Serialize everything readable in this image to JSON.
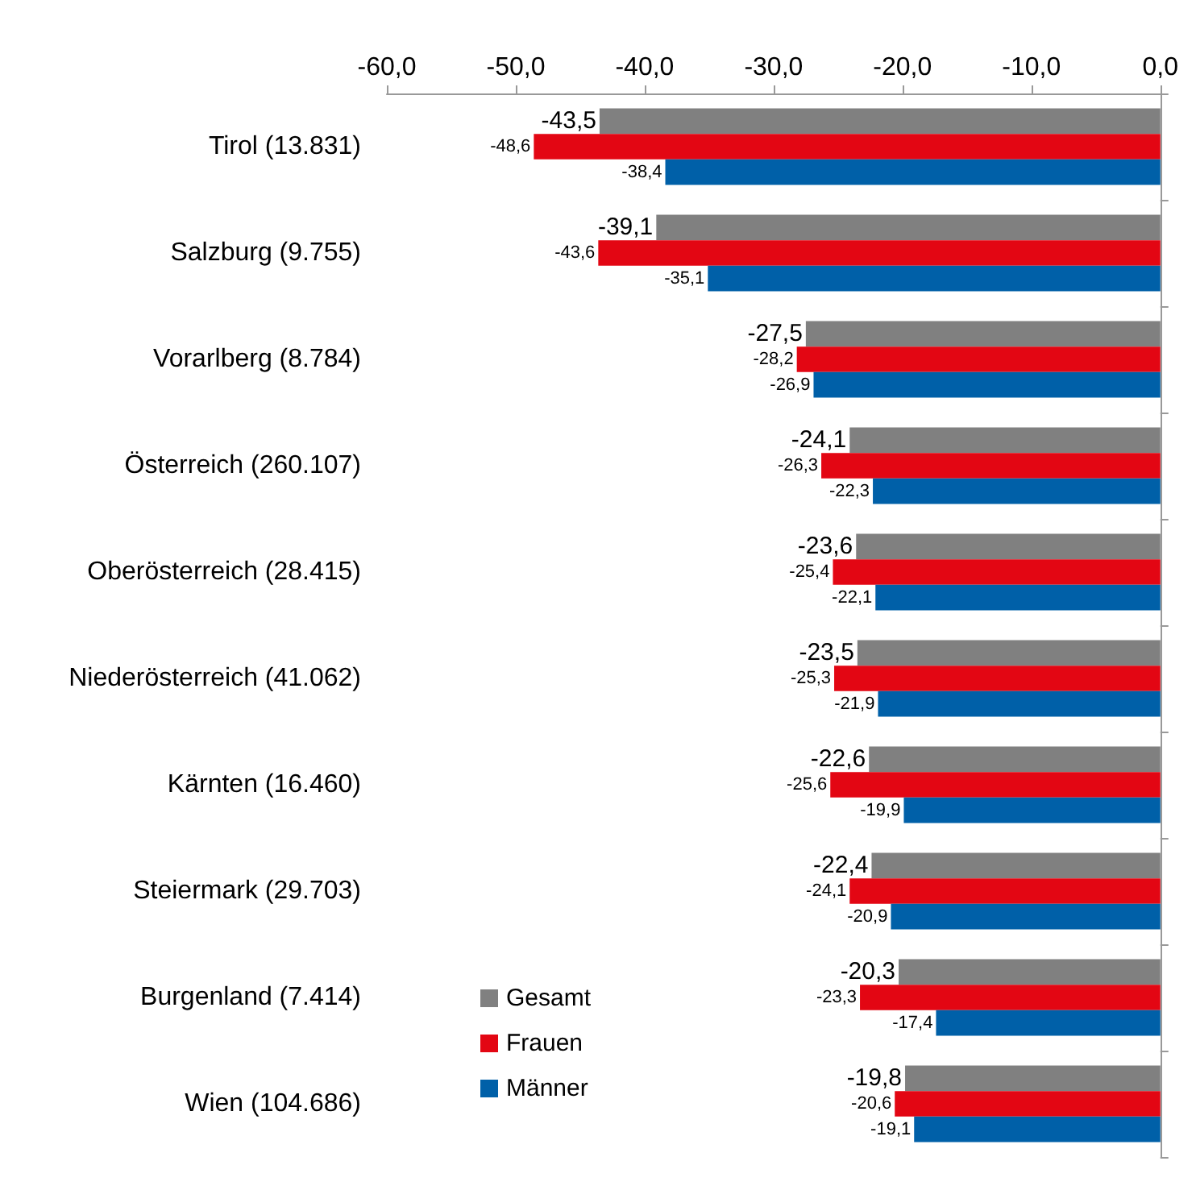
{
  "chart_data": {
    "type": "bar",
    "orientation": "horizontal",
    "categories": [
      "Tirol (13.831)",
      "Salzburg (9.755)",
      "Vorarlberg (8.784)",
      "Österreich (260.107)",
      "Oberösterreich (28.415)",
      "Niederösterreich (41.062)",
      "Kärnten (16.460)",
      "Steiermark (29.703)",
      "Burgenland (7.414)",
      "Wien (104.686)"
    ],
    "series": [
      {
        "name": "Gesamt",
        "color": "#808080",
        "values": [
          -43.5,
          -39.1,
          -27.5,
          -24.1,
          -23.6,
          -23.5,
          -22.6,
          -22.4,
          -20.3,
          -19.8
        ],
        "value_labels": [
          "-43,5",
          "-39,1",
          "-27,5",
          "-24,1",
          "-23,6",
          "-23,5",
          "-22,6",
          "-22,4",
          "-20,3",
          "-19,8"
        ]
      },
      {
        "name": "Frauen",
        "color": "#e30613",
        "values": [
          -48.6,
          -43.6,
          -28.2,
          -26.3,
          -25.4,
          -25.3,
          -25.6,
          -24.1,
          -23.3,
          -20.6
        ],
        "value_labels": [
          "-48,6",
          "-43,6",
          "-28,2",
          "-26,3",
          "-25,4",
          "-25,3",
          "-25,6",
          "-24,1",
          "-23,3",
          "-20,6"
        ]
      },
      {
        "name": "Männer",
        "color": "#0060a8",
        "values": [
          -38.4,
          -35.1,
          -26.9,
          -22.3,
          -22.1,
          -21.9,
          -19.9,
          -20.9,
          -17.4,
          -19.1
        ],
        "value_labels": [
          "-38,4",
          "-35,1",
          "-26,9",
          "-22,3",
          "-22,1",
          "-21,9",
          "-19,9",
          "-20,9",
          "-17,4",
          "-19,1"
        ]
      }
    ],
    "xlim": [
      -60,
      0
    ],
    "xticks": [
      {
        "value": -60,
        "label": "-60,0"
      },
      {
        "value": -50,
        "label": "-50,0"
      },
      {
        "value": -40,
        "label": "-40,0"
      },
      {
        "value": -30,
        "label": "-30,0"
      },
      {
        "value": -20,
        "label": "-20,0"
      },
      {
        "value": -10,
        "label": "-10,0"
      },
      {
        "value": 0,
        "label": "0,0"
      }
    ],
    "legend": "bottom left",
    "grid": false
  }
}
